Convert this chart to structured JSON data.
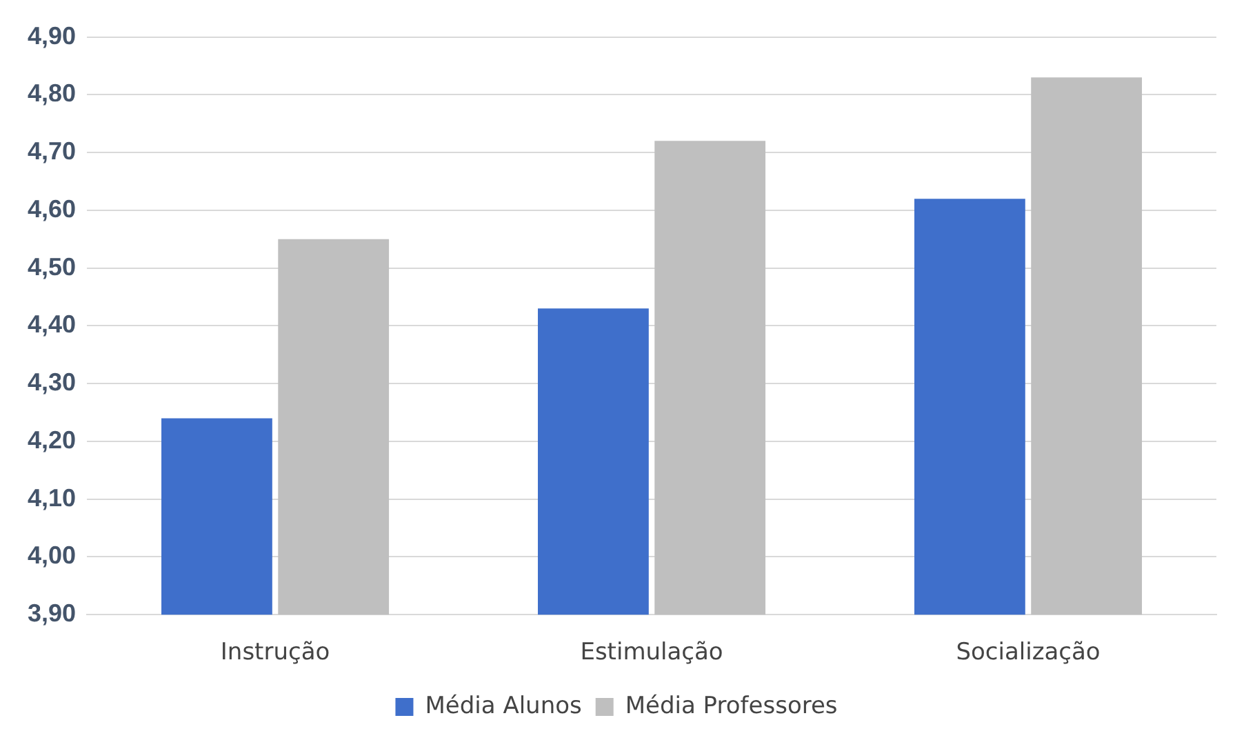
{
  "chart_data": {
    "type": "bar",
    "categories": [
      "Instrução",
      "Estimulação",
      "Socialização"
    ],
    "series": [
      {
        "name": "Média Alunos",
        "color": "#3f6fcb",
        "values": [
          4.24,
          4.43,
          4.62
        ]
      },
      {
        "name": "Média Professores",
        "color": "#bfbfbf",
        "values": [
          4.55,
          4.72,
          4.83
        ]
      }
    ],
    "ylim": [
      3.9,
      4.9
    ],
    "yticks": [
      {
        "value": 3.9,
        "label": "3,90"
      },
      {
        "value": 4.0,
        "label": "4,00"
      },
      {
        "value": 4.1,
        "label": "4,10"
      },
      {
        "value": 4.2,
        "label": "4,20"
      },
      {
        "value": 4.3,
        "label": "4,30"
      },
      {
        "value": 4.4,
        "label": "4,40"
      },
      {
        "value": 4.5,
        "label": "4,50"
      },
      {
        "value": 4.6,
        "label": "4,60"
      },
      {
        "value": 4.7,
        "label": "4,70"
      },
      {
        "value": 4.8,
        "label": "4,80"
      },
      {
        "value": 4.9,
        "label": "4,90"
      }
    ],
    "grid": "y",
    "legend": "bottom"
  }
}
